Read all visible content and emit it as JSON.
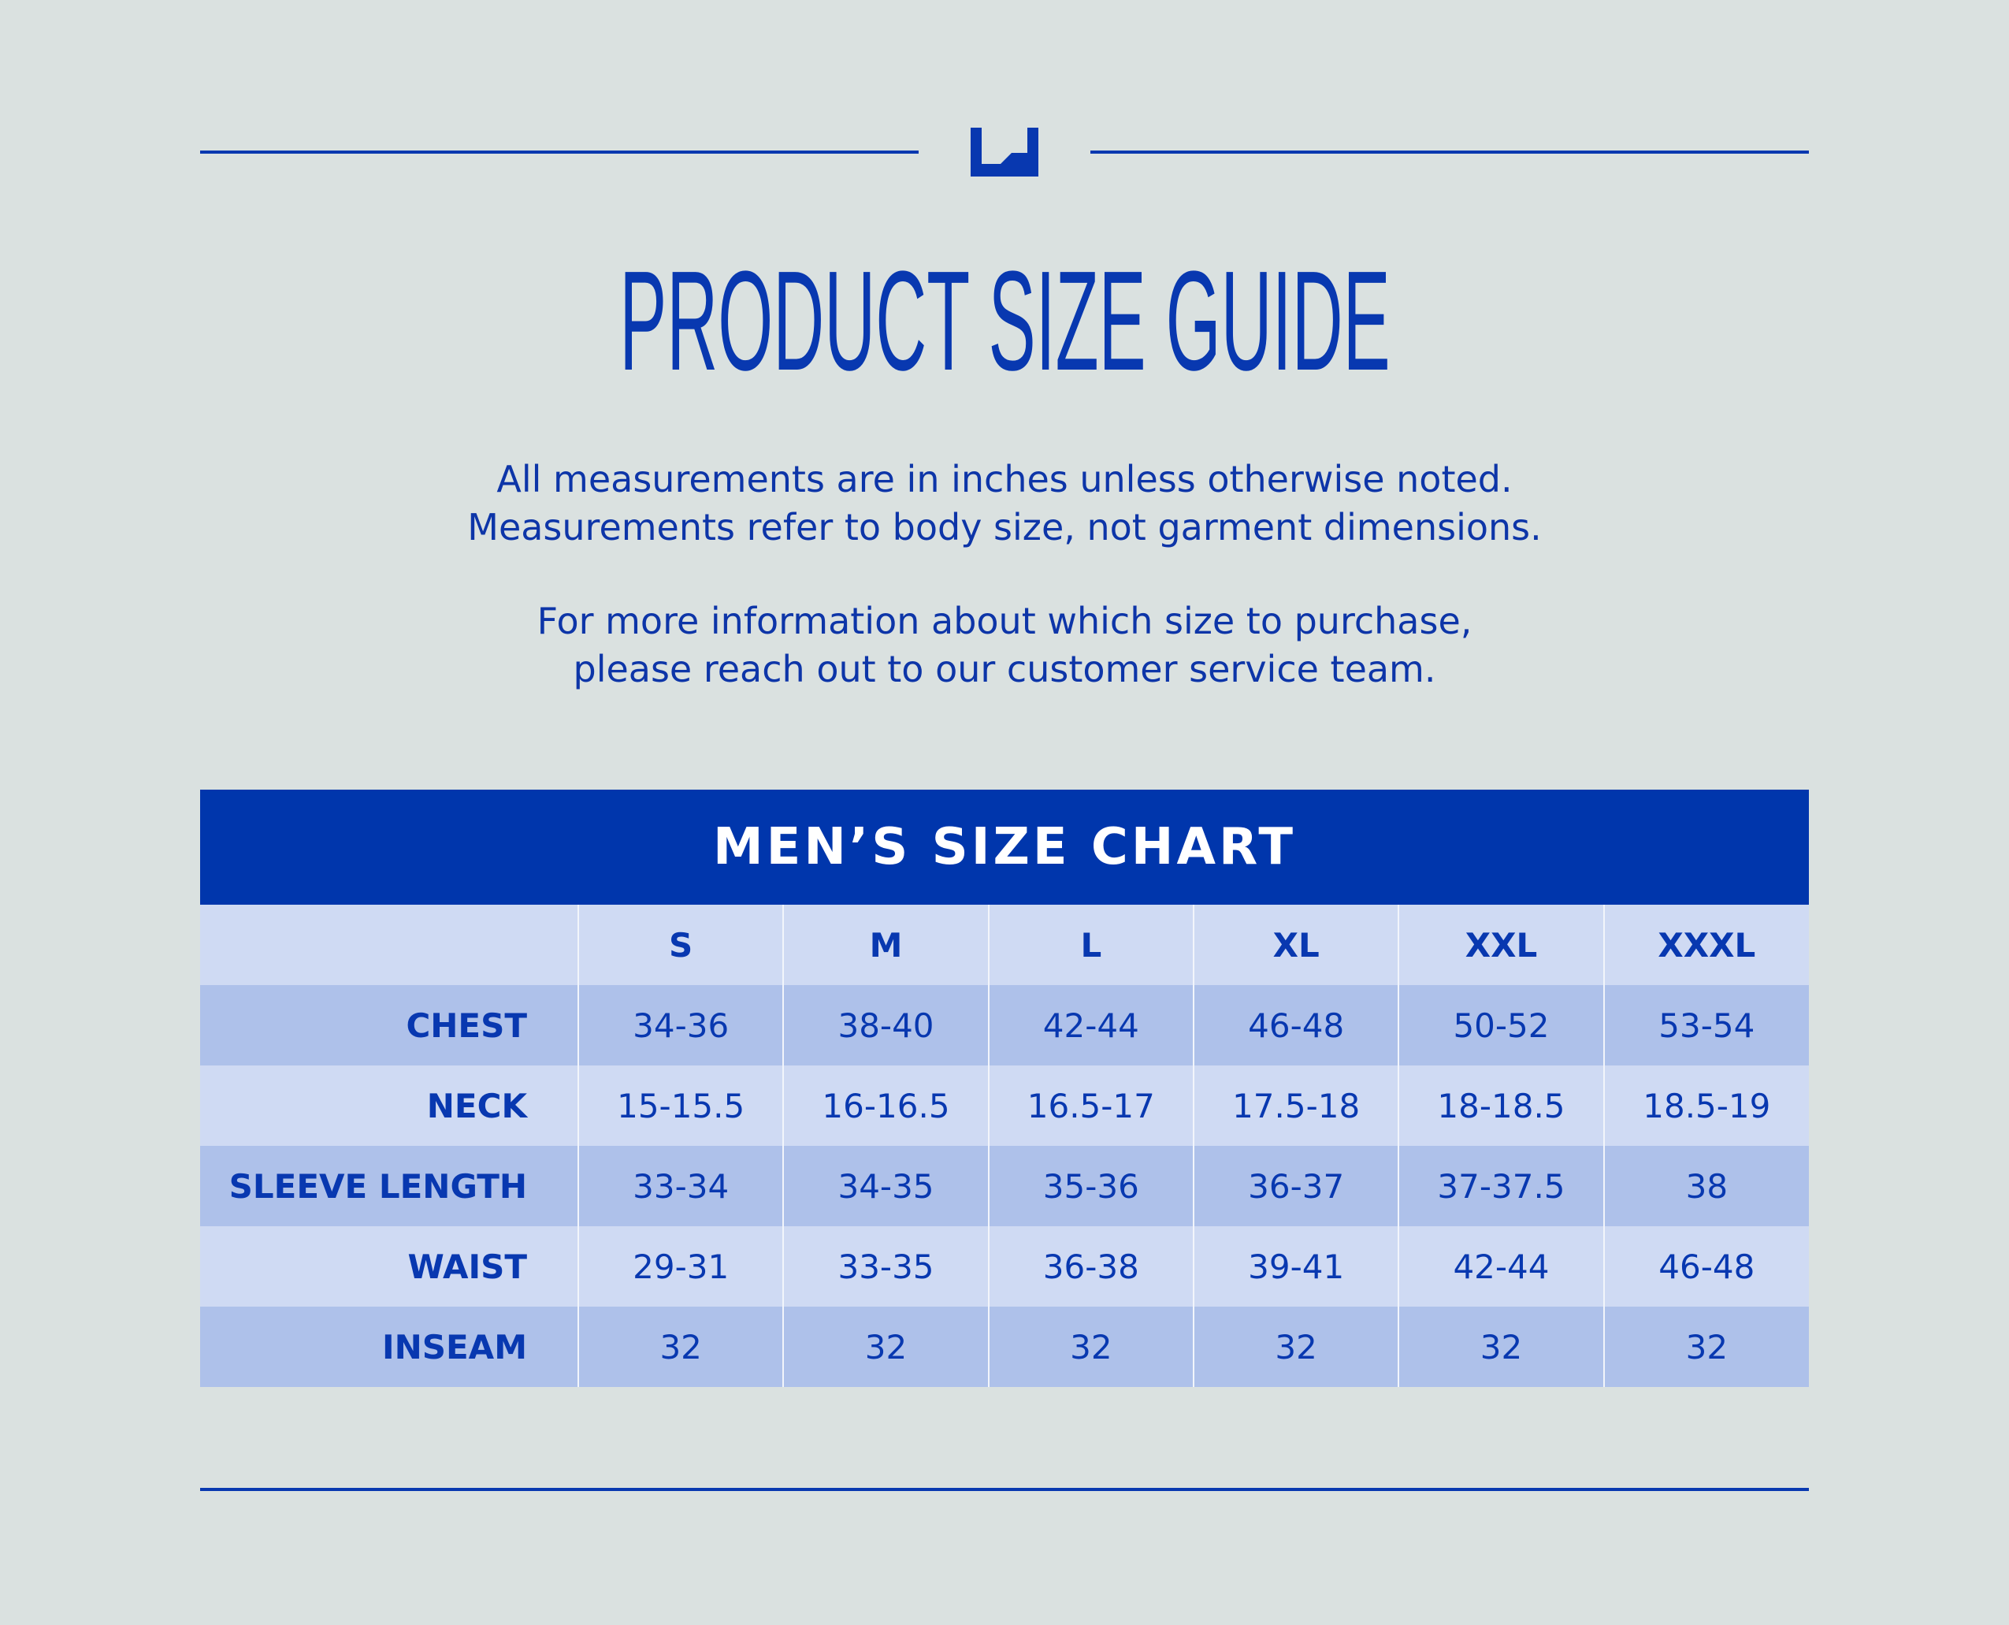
{
  "header": {
    "title": "PRODUCT SIZE GUIDE",
    "intro_lines_1": [
      "All measurements are in inches unless otherwise noted.",
      "Measurements refer to body size, not garment dimensions."
    ],
    "intro_lines_2": [
      "For more information about which size to purchase,",
      "please reach out to our customer service team."
    ]
  },
  "size_chart": {
    "title": "MEN’S SIZE CHART",
    "sizes": [
      "S",
      "M",
      "L",
      "XL",
      "XXL",
      "XXXL"
    ],
    "rows": [
      {
        "label": "CHEST",
        "values": [
          "34-36",
          "38-40",
          "42-44",
          "46-48",
          "50-52",
          "53-54"
        ]
      },
      {
        "label": "NECK",
        "values": [
          "15-15.5",
          "16-16.5",
          "16.5-17",
          "17.5-18",
          "18-18.5",
          "18.5-19"
        ]
      },
      {
        "label": "SLEEVE LENGTH",
        "values": [
          "33-34",
          "34-35",
          "35-36",
          "36-37",
          "37-37.5",
          "38"
        ]
      },
      {
        "label": "WAIST",
        "values": [
          "29-31",
          "33-35",
          "36-38",
          "39-41",
          "42-44",
          "46-48"
        ]
      },
      {
        "label": "INSEAM",
        "values": [
          "32",
          "32",
          "32",
          "32",
          "32",
          "32"
        ]
      }
    ]
  },
  "colors": {
    "brand_blue": "#0036ac",
    "background": "#dae1e0",
    "row_light": "#cfdaf3",
    "row_dark": "#aec1ea"
  },
  "icons": {
    "logo": "brand-u-logo-icon"
  }
}
